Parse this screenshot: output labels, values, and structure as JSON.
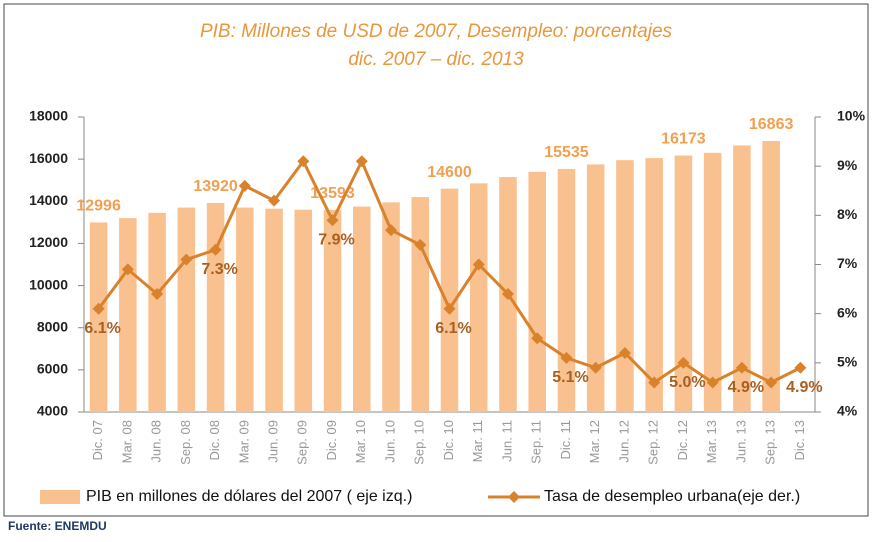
{
  "chart_data": {
    "type": "bar_line",
    "title": "PIB: Millones de USD de 2007, Desempleo: porcentajes",
    "subtitle": "dic. 2007 – dic. 2013",
    "categories": [
      "Dic. 07",
      "Mar. 08",
      "Jun. 08",
      "Sep. 08",
      "Dic. 08",
      "Mar. 09",
      "Jun. 09",
      "Sep. 09",
      "Dic. 09",
      "Mar. 10",
      "Jun. 10",
      "Sep. 10",
      "Dic. 10",
      "Mar. 11",
      "Jun. 11",
      "Sep. 11",
      "Dic. 11",
      "Mar. 12",
      "Jun. 12",
      "Sep. 12",
      "Dic. 12",
      "Mar. 13",
      "Jun. 13",
      "Sep. 13",
      "Dic. 13"
    ],
    "series": [
      {
        "name": "PIB en millones de dólares del 2007 ( eje izq.)",
        "type": "bar",
        "color": "#f9c18f",
        "values": [
          12996,
          13200,
          13450,
          13700,
          13920,
          13700,
          13650,
          13600,
          13593,
          13750,
          13950,
          14200,
          14600,
          14850,
          15150,
          15400,
          15535,
          15750,
          15950,
          16050,
          16173,
          16300,
          16650,
          16863,
          null
        ],
        "value_labels": [
          "12996",
          null,
          null,
          null,
          "13920",
          null,
          null,
          null,
          "13593",
          null,
          null,
          null,
          "14600",
          null,
          null,
          null,
          "15535",
          null,
          null,
          null,
          "16173",
          null,
          null,
          "16863",
          null
        ]
      },
      {
        "name": "Tasa de desempleo urbana(eje der.)",
        "type": "line",
        "axis": "y2",
        "color": "#d9822b",
        "values": [
          6.1,
          6.9,
          6.4,
          7.1,
          7.3,
          8.6,
          8.3,
          9.1,
          7.9,
          9.1,
          7.7,
          7.4,
          6.1,
          7.0,
          6.4,
          5.5,
          5.1,
          4.9,
          5.2,
          4.6,
          5.0,
          4.6,
          4.9,
          4.6,
          4.9
        ],
        "value_labels": [
          "6.1%",
          null,
          null,
          null,
          "7.3%",
          null,
          null,
          null,
          "7.9%",
          null,
          null,
          null,
          "6.1%",
          null,
          null,
          null,
          "5.1%",
          null,
          null,
          null,
          "5.0%",
          null,
          "4.9%",
          null,
          "4.9%"
        ]
      }
    ],
    "ylim": [
      4000,
      18000
    ],
    "yticks": [
      4000,
      6000,
      8000,
      10000,
      12000,
      14000,
      16000,
      18000
    ],
    "y2lim": [
      4,
      10
    ],
    "y2ticks": [
      {
        "value": 4,
        "label": "4%"
      },
      {
        "value": 5,
        "label": "5%"
      },
      {
        "value": 6,
        "label": "6%"
      },
      {
        "value": 7,
        "label": "7%"
      },
      {
        "value": 8,
        "label": "8%"
      },
      {
        "value": 9,
        "label": "9%"
      },
      {
        "value": 10,
        "label": "10%"
      }
    ],
    "legend": "bottom",
    "source": "Fuente: ENEMDU"
  }
}
